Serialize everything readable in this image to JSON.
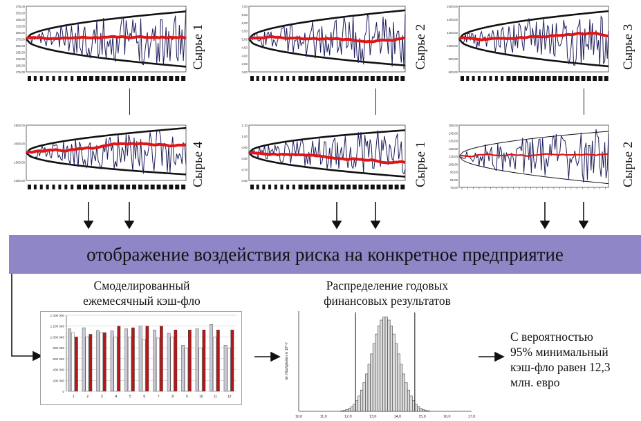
{
  "banner": {
    "text": "отображение воздействия риска на конкретное предприятие"
  },
  "price_panels": [
    {
      "label": "Сырье 1",
      "y_ticks": [
        "375,00",
        "355,00",
        "335,00",
        "315,00",
        "295,00",
        "275,00",
        "255,00",
        "235,00",
        "215,00",
        "195,00",
        "175,00"
      ]
    },
    {
      "label": "Сырье 2",
      "y_ticks": [
        "7,00",
        "6,50",
        "6,00",
        "5,50",
        "5,00",
        "4,50",
        "4,00",
        "3,50",
        "3,00"
      ]
    },
    {
      "label": "Сырье 3",
      "y_ticks": [
        "1600,00",
        "1400,00",
        "1200,00",
        "1000,00",
        "800,00",
        "600,00"
      ]
    },
    {
      "label": "Сырье 4",
      "y_ticks": [
        "2500,00",
        "2000,00",
        "1500,00",
        "1000,00"
      ]
    },
    {
      "label": "Сырье 1",
      "y_ticks": [
        "1,10",
        "1,00",
        "0,90",
        "0,80",
        "0,70",
        "0,60"
      ]
    },
    {
      "label": "Сырье 2",
      "y_ticks": [
        "155,00",
        "145,00",
        "135,00",
        "125,00",
        "115,00",
        "105,00",
        "95,00",
        "85,00",
        "75,00"
      ]
    }
  ],
  "monthly_cashflow": {
    "title_line1": "Смоделированный",
    "title_line2": "ежемесячный кэш-фло",
    "chart_data": {
      "type": "bar",
      "categories": [
        "1",
        "2",
        "3",
        "4",
        "5",
        "6",
        "7",
        "8",
        "9",
        "10",
        "11",
        "12"
      ],
      "y_ticks": [
        "1 400 000",
        "1 200 000",
        "1 000 000",
        "800 000",
        "600 000",
        "400 000",
        "200 000",
        "0"
      ],
      "ylim": [
        0,
        1400000
      ],
      "series": [
        {
          "values": [
            1150000,
            1170000,
            1120000,
            1110000,
            1150000,
            1200000,
            1130000,
            1070000,
            850000,
            1150000,
            1230000,
            850000
          ]
        },
        {
          "values": [
            1080000,
            1000000,
            1080000,
            1000000,
            1000000,
            950000,
            980000,
            1000000,
            800000,
            800000,
            1000000,
            800000
          ]
        },
        {
          "values": [
            1000000,
            1050000,
            1080000,
            1200000,
            1170000,
            1200000,
            1200000,
            1130000,
            1130000,
            1130000,
            1130000,
            1130000
          ]
        }
      ],
      "colors": [
        "#c9c9d6",
        "#ffffff",
        "#b01919"
      ]
    }
  },
  "annual_distribution": {
    "title_line1": "Распределение годовых",
    "title_line2": "финансовых результатов",
    "y_axis_label": "rel. Häufigkeiten in 10^-7",
    "chart_data": {
      "type": "bar",
      "x_ticks": [
        "10,0",
        "11,0",
        "12,0",
        "13,0",
        "14,0",
        "15,0",
        "16,0",
        "17,0"
      ],
      "xlim": [
        10,
        17
      ],
      "percentile_lines": [
        12.3,
        14.7
      ],
      "mean": 13.5,
      "sd": 0.55
    }
  },
  "result": {
    "line1": "С вероятностью",
    "line2": "95% минимальный",
    "line3": "кэш-фло равен 12,3",
    "line4": "млн. евро"
  },
  "colors": {
    "banner": "#8e86c6",
    "simulated_path": "#1c1c5a",
    "mean_path": "#e01515",
    "bars_gray": "#c9c9d6",
    "bars_red": "#b01919"
  }
}
